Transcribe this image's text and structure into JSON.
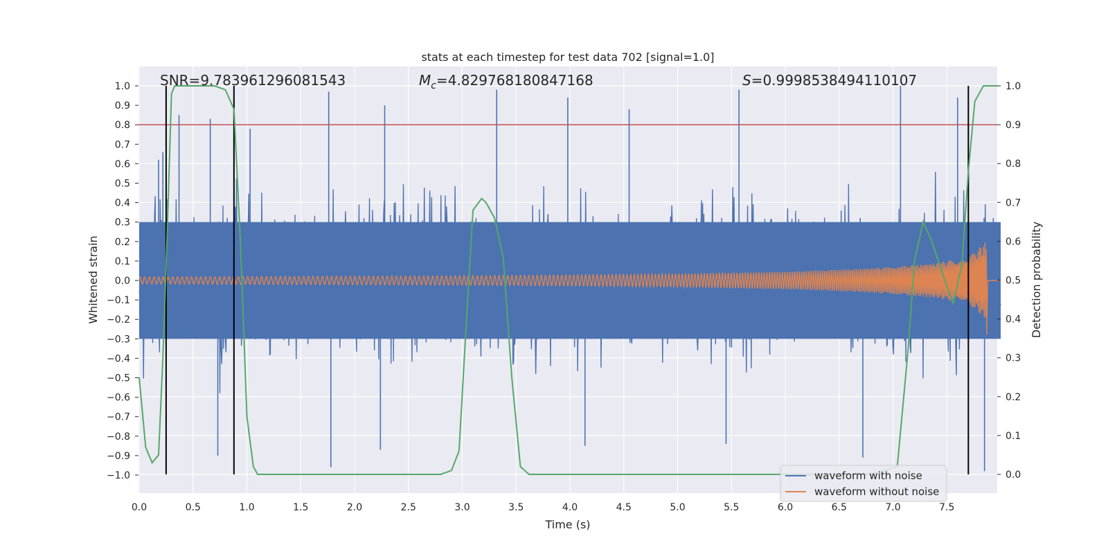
{
  "chart_data": {
    "type": "line",
    "title": "stats at each timestep for test data 702 [signal=1.0]",
    "xlabel": "Time (s)",
    "ylabel_left": "Whitened strain",
    "ylabel_right": "Detection probability",
    "xlim": [
      0.0,
      8.0
    ],
    "ylim_left": [
      -1.1,
      1.1
    ],
    "ylim_right": [
      -0.05,
      1.05
    ],
    "x_ticks": [
      "0.0",
      "0.5",
      "1.0",
      "1.5",
      "2.0",
      "2.5",
      "3.0",
      "3.5",
      "4.0",
      "4.5",
      "5.0",
      "5.5",
      "6.0",
      "6.5",
      "7.0",
      "7.5"
    ],
    "y_ticks_left": [
      "−1.0",
      "−0.9",
      "−0.8",
      "−0.7",
      "−0.6",
      "−0.5",
      "−0.4",
      "−0.3",
      "−0.2",
      "−0.1",
      "0.0",
      "0.1",
      "0.2",
      "0.3",
      "0.4",
      "0.5",
      "0.6",
      "0.7",
      "0.8",
      "0.9",
      "1.0"
    ],
    "y_ticks_right": [
      "0.0",
      "0.1",
      "0.2",
      "0.3",
      "0.4",
      "0.5",
      "0.6",
      "0.7",
      "0.8",
      "0.9",
      "1.0"
    ],
    "grid": true,
    "annotations": {
      "snr_prefix": "SNR=",
      "snr": "9.783961296081543",
      "mc_symbol": "M",
      "mc_subscript": "c",
      "mc_value": "=4.829768180847168",
      "s_symbol": "S",
      "s_value": "=0.9998538494110107"
    },
    "threshold": 0.9,
    "detection_boundaries": [
      0.25,
      0.88,
      7.7
    ],
    "series": [
      {
        "name": "waveform with noise",
        "color": "#4c72b0",
        "description_of_envelope": "noise spans roughly ±0.45 with spikes up to ±1.0",
        "spikes": [
          {
            "x": 0.18,
            "y": 0.62
          },
          {
            "x": 0.22,
            "y": 0.66
          },
          {
            "x": 0.37,
            "y": 0.85
          },
          {
            "x": 0.66,
            "y": 0.83
          },
          {
            "x": 1.03,
            "y": 0.78
          },
          {
            "x": 1.76,
            "y": 0.97
          },
          {
            "x": 2.28,
            "y": 0.9
          },
          {
            "x": 3.32,
            "y": 0.98
          },
          {
            "x": 3.98,
            "y": 0.94
          },
          {
            "x": 4.55,
            "y": 0.88
          },
          {
            "x": 5.57,
            "y": 0.98
          },
          {
            "x": 7.07,
            "y": 1.0
          },
          {
            "x": 7.6,
            "y": 0.94
          },
          {
            "x": 1.78,
            "y": -0.96
          },
          {
            "x": 2.24,
            "y": -0.87
          },
          {
            "x": 5.45,
            "y": -0.84
          },
          {
            "x": 6.72,
            "y": -0.91
          },
          {
            "x": 7.85,
            "y": -0.98
          },
          {
            "x": 0.73,
            "y": -0.9
          },
          {
            "x": 4.14,
            "y": -0.85
          }
        ]
      },
      {
        "name": "waveform without noise",
        "color": "#dd8452",
        "envelope": {
          "x": [
            0.0,
            1.0,
            2.0,
            3.0,
            4.0,
            5.0,
            6.0,
            6.5,
            7.0,
            7.4,
            7.6,
            7.75,
            7.82,
            7.86
          ],
          "amp": [
            0.018,
            0.02,
            0.022,
            0.024,
            0.028,
            0.034,
            0.045,
            0.055,
            0.07,
            0.09,
            0.11,
            0.14,
            0.18,
            0.2
          ]
        },
        "end_x": 7.87
      },
      {
        "name": "detection probability",
        "color": "#55a868",
        "axis": "right",
        "x": [
          0.0,
          0.06,
          0.12,
          0.18,
          0.22,
          0.26,
          0.3,
          0.33,
          0.5,
          0.7,
          0.8,
          0.88,
          0.94,
          1.0,
          1.06,
          1.1,
          1.2,
          2.0,
          2.8,
          2.9,
          2.97,
          3.04,
          3.1,
          3.18,
          3.22,
          3.3,
          3.38,
          3.46,
          3.54,
          3.62,
          4.0,
          5.0,
          6.0,
          6.8,
          7.04,
          7.14,
          7.2,
          7.28,
          7.36,
          7.48,
          7.56,
          7.64,
          7.7,
          7.76,
          7.84,
          7.97
        ],
        "y": [
          0.25,
          0.07,
          0.03,
          0.05,
          0.3,
          0.62,
          0.98,
          1.0,
          1.0,
          1.0,
          0.99,
          0.94,
          0.6,
          0.15,
          0.02,
          0.0,
          0.0,
          0.0,
          0.0,
          0.01,
          0.06,
          0.4,
          0.68,
          0.71,
          0.7,
          0.66,
          0.56,
          0.25,
          0.02,
          0.0,
          0.0,
          0.0,
          0.0,
          0.0,
          0.02,
          0.32,
          0.55,
          0.65,
          0.6,
          0.5,
          0.44,
          0.54,
          0.78,
          0.96,
          1.0,
          1.0
        ]
      }
    ],
    "threshold_color": "#c44e52",
    "boundary_color": "#000000",
    "legend": {
      "placement": "lower-right",
      "entries": [
        "waveform with noise",
        "waveform without noise"
      ]
    },
    "background_color": "#eaeaf2",
    "grid_color": "#ffffff"
  }
}
